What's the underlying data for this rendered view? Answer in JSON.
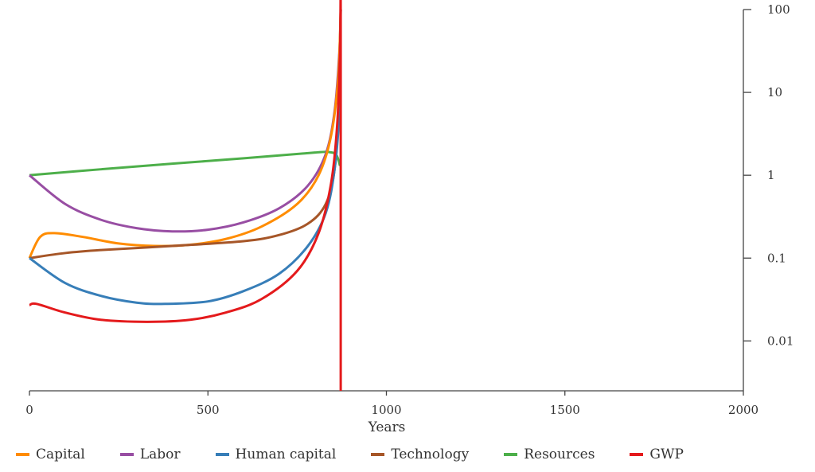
{
  "chart_data": {
    "type": "line",
    "title": "",
    "xlabel": "Years",
    "ylabel": "",
    "xlim": [
      0,
      2000
    ],
    "ylim": [
      0.0025,
      100
    ],
    "yscale": "log",
    "y_axis_side": "right",
    "grid": false,
    "legend_placement": "bottom",
    "x_ticks": [
      "0",
      "500",
      "1000",
      "1500",
      "2000"
    ],
    "x_tick_values": [
      0,
      500,
      1000,
      1500,
      2000
    ],
    "y_ticks": [
      "100",
      "10",
      "1",
      "0.1",
      "0.01"
    ],
    "y_tick_values": [
      100,
      10,
      1,
      0.1,
      0.01
    ],
    "series": [
      {
        "name": "Capital",
        "color": "#ff8c00",
        "points": [
          [
            0,
            0.1
          ],
          [
            30,
            0.18
          ],
          [
            70,
            0.2
          ],
          [
            150,
            0.18
          ],
          [
            250,
            0.15
          ],
          [
            350,
            0.14
          ],
          [
            450,
            0.145
          ],
          [
            550,
            0.17
          ],
          [
            650,
            0.24
          ],
          [
            750,
            0.45
          ],
          [
            810,
            1.0
          ],
          [
            845,
            3
          ],
          [
            865,
            15
          ],
          [
            872,
            100
          ]
        ]
      },
      {
        "name": "Labor",
        "color": "#984ea3",
        "points": [
          [
            0,
            1
          ],
          [
            100,
            0.45
          ],
          [
            200,
            0.29
          ],
          [
            300,
            0.23
          ],
          [
            400,
            0.21
          ],
          [
            500,
            0.22
          ],
          [
            600,
            0.27
          ],
          [
            700,
            0.4
          ],
          [
            780,
            0.75
          ],
          [
            830,
            1.8
          ],
          [
            855,
            6
          ],
          [
            868,
            30
          ],
          [
            872,
            100
          ]
        ]
      },
      {
        "name": "Human capital",
        "color": "#377eb8",
        "points": [
          [
            0,
            0.1
          ],
          [
            100,
            0.05
          ],
          [
            200,
            0.035
          ],
          [
            300,
            0.029
          ],
          [
            380,
            0.028
          ],
          [
            500,
            0.03
          ],
          [
            600,
            0.04
          ],
          [
            700,
            0.065
          ],
          [
            780,
            0.14
          ],
          [
            830,
            0.35
          ],
          [
            855,
            1.2
          ],
          [
            868,
            6
          ],
          [
            872,
            100
          ]
        ]
      },
      {
        "name": "Technology",
        "color": "#a65628",
        "points": [
          [
            0,
            0.1
          ],
          [
            100,
            0.115
          ],
          [
            200,
            0.125
          ],
          [
            400,
            0.14
          ],
          [
            600,
            0.16
          ],
          [
            700,
            0.19
          ],
          [
            780,
            0.26
          ],
          [
            830,
            0.45
          ],
          [
            855,
            1.2
          ],
          [
            868,
            8
          ],
          [
            872,
            100
          ]
        ]
      },
      {
        "name": "Resources",
        "color": "#4daf4a",
        "points": [
          [
            0,
            1
          ],
          [
            200,
            1.18
          ],
          [
            400,
            1.38
          ],
          [
            600,
            1.6
          ],
          [
            800,
            1.88
          ],
          [
            840,
            1.9
          ],
          [
            860,
            1.75
          ],
          [
            870,
            1.3
          ]
        ]
      },
      {
        "name": "GWP",
        "color": "#e41a1c",
        "points": [
          [
            0,
            0.027
          ],
          [
            20,
            0.028
          ],
          [
            100,
            0.022
          ],
          [
            200,
            0.018
          ],
          [
            330,
            0.017
          ],
          [
            450,
            0.018
          ],
          [
            550,
            0.022
          ],
          [
            650,
            0.032
          ],
          [
            750,
            0.07
          ],
          [
            810,
            0.2
          ],
          [
            845,
            0.8
          ],
          [
            862,
            4
          ],
          [
            870,
            30
          ],
          [
            872,
            100
          ],
          [
            872,
            0.0025
          ]
        ]
      }
    ]
  }
}
